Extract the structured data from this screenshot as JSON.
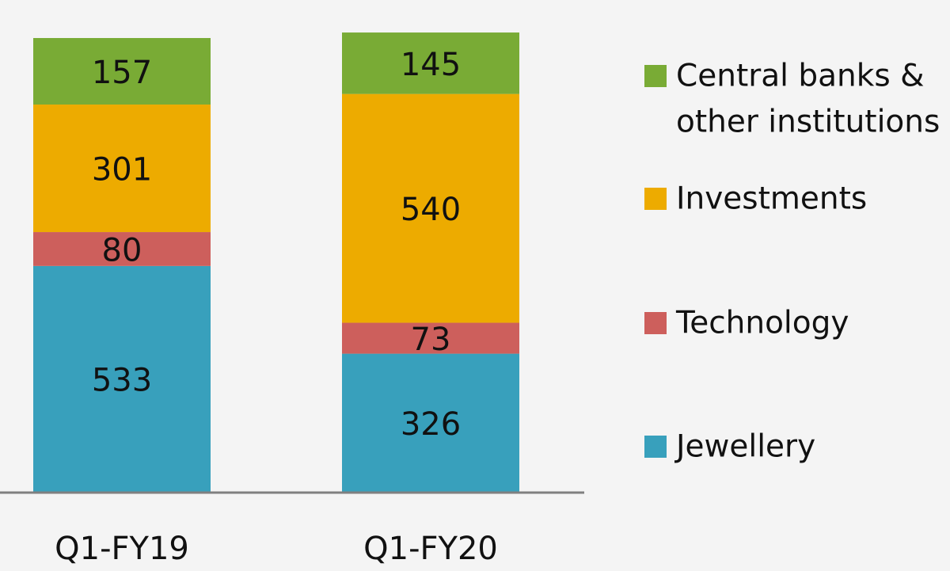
{
  "chart_data": {
    "type": "bar",
    "stacked": true,
    "categories": [
      "Q1-FY19",
      "Q1-FY20"
    ],
    "series": [
      {
        "name": "Jewellery",
        "values": [
          533,
          326
        ],
        "color": "#38a0bc"
      },
      {
        "name": "Technology",
        "values": [
          80,
          73
        ],
        "color": "#cd5f5c"
      },
      {
        "name": "Investments",
        "values": [
          301,
          540
        ],
        "color": "#edab00"
      },
      {
        "name": "Central banks & other institutions",
        "name_lines": [
          "Central banks &",
          "other institutions"
        ],
        "values": [
          157,
          145
        ],
        "color": "#79ab35"
      }
    ],
    "data_labels": true,
    "legend_position": "right",
    "legend_order": [
      "Central banks & other institutions",
      "Investments",
      "Technology",
      "Jewellery"
    ],
    "y_axis_visible": false,
    "grid": false,
    "title": "",
    "xlabel": "",
    "ylabel": ""
  }
}
